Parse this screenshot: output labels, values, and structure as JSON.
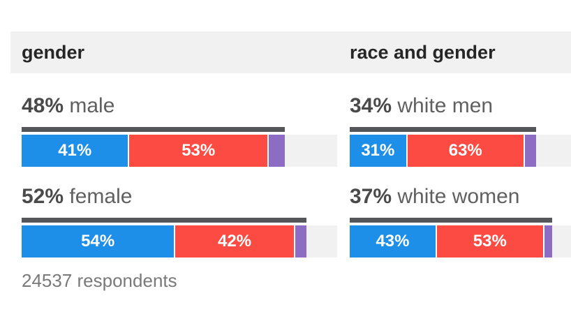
{
  "chart_data": {
    "type": "bar",
    "subtype": "horizontal-stacked-exit-poll",
    "legend": "none",
    "orientation": "horizontal",
    "panels": [
      {
        "title": "gender",
        "rows": [
          {
            "label": "male",
            "group_pct": 48,
            "segments": [
              {
                "color": "blue",
                "value": 41,
                "label_visible": true
              },
              {
                "color": "red",
                "value": 53,
                "label_visible": true
              },
              {
                "color": "purple",
                "value": 6,
                "label_visible": false
              }
            ]
          },
          {
            "label": "female",
            "group_pct": 52,
            "segments": [
              {
                "color": "blue",
                "value": 54,
                "label_visible": true
              },
              {
                "color": "red",
                "value": 42,
                "label_visible": true
              },
              {
                "color": "purple",
                "value": 4,
                "label_visible": false
              }
            ]
          }
        ]
      },
      {
        "title": "race and gender",
        "rows": [
          {
            "label": "white men",
            "group_pct": 34,
            "segments": [
              {
                "color": "blue",
                "value": 31,
                "label_visible": true
              },
              {
                "color": "red",
                "value": 63,
                "label_visible": true
              },
              {
                "color": "purple",
                "value": 6,
                "label_visible": false
              }
            ]
          },
          {
            "label": "white women",
            "group_pct": 37,
            "segments": [
              {
                "color": "blue",
                "value": 43,
                "label_visible": true
              },
              {
                "color": "red",
                "value": 53,
                "label_visible": true
              },
              {
                "color": "purple",
                "value": 4,
                "label_visible": false
              }
            ]
          }
        ]
      }
    ],
    "footnote": "24537 respondents",
    "layout": {
      "track_max_pct": 57.6
    },
    "colors": {
      "blue": "#1e8fe8",
      "red": "#fb4b42",
      "purple": "#8d6cc4",
      "group_line": "#55565a",
      "track": "#f1f1f1",
      "header_band": "#f1f1f1"
    }
  }
}
